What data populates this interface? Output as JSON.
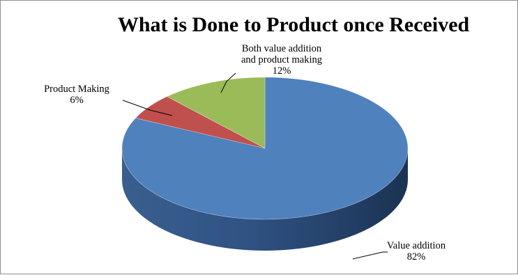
{
  "chart_data": {
    "type": "pie",
    "style": "3d",
    "title": "What is Done to Product once Received",
    "categories": [
      "Value addition",
      "Product Making",
      "Both value addition and product making"
    ],
    "values": [
      82,
      6,
      12
    ],
    "unit": "%",
    "labels": [
      {
        "lines": [
          "Value addition"
        ],
        "value": "82%"
      },
      {
        "lines": [
          "Product Making"
        ],
        "value": "6%"
      },
      {
        "lines": [
          "Both value addition",
          "and product making"
        ],
        "value": "12%"
      }
    ],
    "colors": [
      "#4f81bd",
      "#c0504d",
      "#9bbb59"
    ],
    "side_colors": [
      "#2b4c76",
      "#7a2522",
      "#5e7a2e"
    ],
    "legend": "none"
  }
}
